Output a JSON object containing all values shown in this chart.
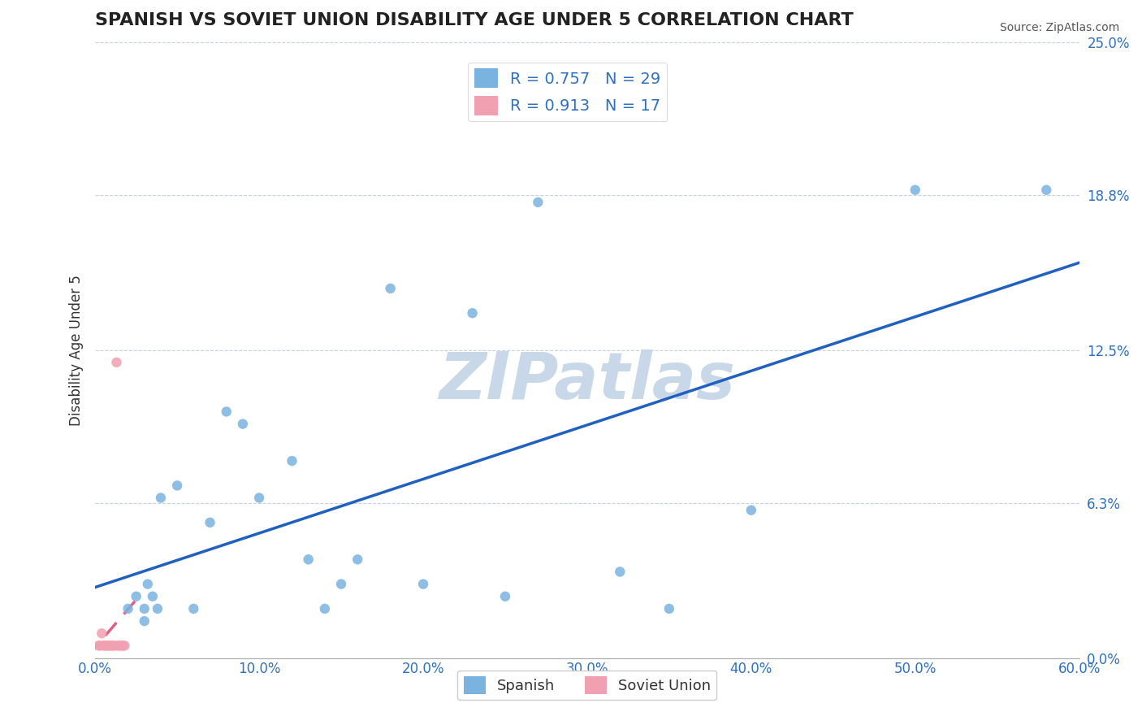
{
  "title": "SPANISH VS SOVIET UNION DISABILITY AGE UNDER 5 CORRELATION CHART",
  "source": "Source: ZipAtlas.com",
  "xlabel": "",
  "ylabel": "Disability Age Under 5",
  "xlim": [
    0.0,
    0.6
  ],
  "ylim": [
    0.0,
    0.25
  ],
  "xticks": [
    0.0,
    0.1,
    0.2,
    0.3,
    0.4,
    0.5,
    0.6
  ],
  "xticklabels": [
    "0.0%",
    "10.0%",
    "20.0%",
    "30.0%",
    "40.0%",
    "50.0%",
    "60.0%"
  ],
  "yticks_right": [
    0.0,
    0.063,
    0.125,
    0.188,
    0.25
  ],
  "yticklabels_right": [
    "0.0%",
    "6.3%",
    "12.5%",
    "18.8%",
    "25.0%"
  ],
  "spanish_R": 0.757,
  "spanish_N": 29,
  "soviet_R": 0.913,
  "soviet_N": 17,
  "spanish_color": "#7ab3e0",
  "soviet_color": "#f0a0b0",
  "spanish_line_color": "#2060c0",
  "soviet_line_color": "#e06080",
  "watermark": "ZIPatlas",
  "watermark_color": "#c8d8e8",
  "background_color": "#ffffff",
  "grid_color": "#c8d0d8",
  "spanish_x": [
    0.02,
    0.025,
    0.03,
    0.03,
    0.032,
    0.035,
    0.038,
    0.04,
    0.05,
    0.06,
    0.07,
    0.08,
    0.09,
    0.1,
    0.12,
    0.13,
    0.14,
    0.15,
    0.16,
    0.18,
    0.2,
    0.23,
    0.25,
    0.27,
    0.32,
    0.35,
    0.4,
    0.5,
    0.58
  ],
  "spanish_y": [
    0.02,
    0.025,
    0.015,
    0.02,
    0.03,
    0.025,
    0.02,
    0.065,
    0.07,
    0.02,
    0.055,
    0.1,
    0.095,
    0.065,
    0.08,
    0.04,
    0.02,
    0.03,
    0.04,
    0.15,
    0.03,
    0.14,
    0.025,
    0.185,
    0.035,
    0.02,
    0.06,
    0.19,
    0.19
  ],
  "soviet_x": [
    0.002,
    0.003,
    0.004,
    0.005,
    0.006,
    0.007,
    0.008,
    0.009,
    0.01,
    0.011,
    0.012,
    0.013,
    0.014,
    0.015,
    0.016,
    0.017,
    0.018
  ],
  "soviet_y": [
    0.005,
    0.005,
    0.01,
    0.005,
    0.005,
    0.005,
    0.005,
    0.005,
    0.005,
    0.005,
    0.005,
    0.12,
    0.005,
    0.005,
    0.005,
    0.005,
    0.005
  ]
}
